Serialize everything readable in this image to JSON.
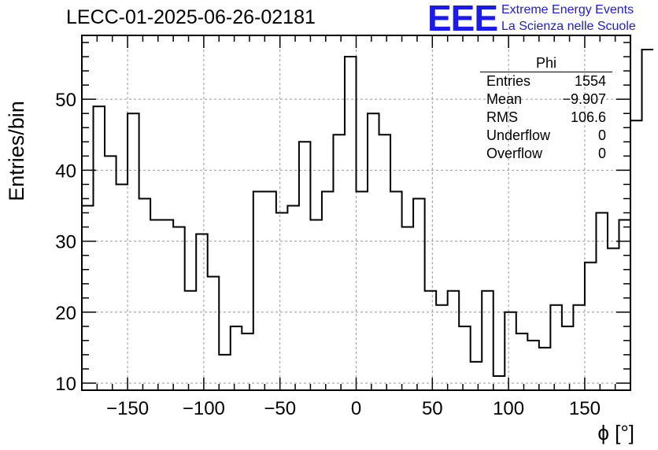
{
  "title": "LECC-01-2025-06-26-02181",
  "logo": {
    "text": "EEE",
    "line1": "Extreme Energy Events",
    "line2": "La Scienza nelle Scuole"
  },
  "stats": {
    "name": "Phi",
    "rows": [
      {
        "label": "Entries",
        "value": "1554"
      },
      {
        "label": "Mean",
        "value": "−9.907"
      },
      {
        "label": "RMS",
        "value": "106.6"
      },
      {
        "label": "Underflow",
        "value": "0"
      },
      {
        "label": "Overflow",
        "value": "0"
      }
    ]
  },
  "chart_data": {
    "type": "bar",
    "style": "step-histogram",
    "xlabel": "ϕ [°]",
    "ylabel": "Entries/bin",
    "xlim": [
      -180,
      180
    ],
    "ylim": [
      9,
      59
    ],
    "bin_width": 7.5,
    "grid": true,
    "x_ticks": [
      -150,
      -100,
      -50,
      0,
      50,
      100,
      150
    ],
    "x_tick_labels": [
      "−150",
      "−100",
      "−50",
      "0",
      "50",
      "100",
      "150"
    ],
    "y_ticks": [
      10,
      20,
      30,
      40,
      50
    ],
    "y_tick_labels": [
      "10",
      "20",
      "30",
      "40",
      "50"
    ],
    "values": [
      35,
      49,
      42,
      38,
      48,
      36,
      33,
      33,
      32,
      23,
      31,
      25,
      14,
      18,
      17,
      37,
      37,
      34,
      35,
      44,
      33,
      37,
      45,
      56,
      37,
      48,
      45,
      37,
      32,
      36,
      23,
      21,
      23,
      18,
      13,
      23,
      11,
      20,
      17,
      16,
      15,
      21,
      18,
      21,
      27,
      34,
      29,
      33,
      47,
      57
    ]
  }
}
